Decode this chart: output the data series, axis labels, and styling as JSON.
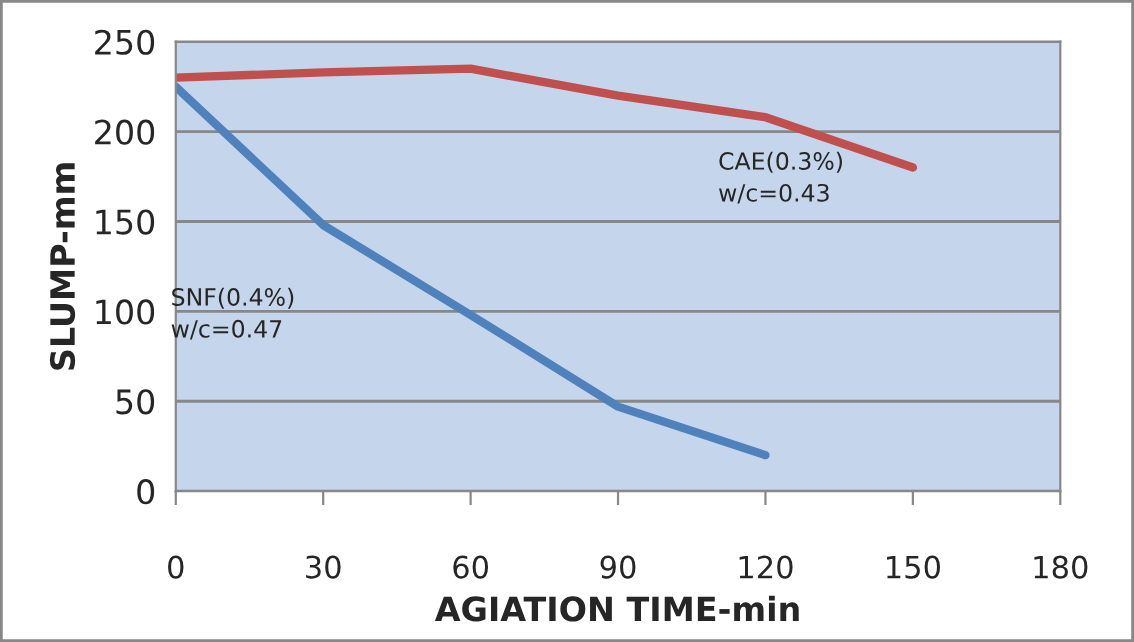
{
  "chart_data": {
    "type": "line",
    "xlabel": "AGIATION TIME-min",
    "ylabel": "SLUMP-mm",
    "series": [
      {
        "name": "CAE(0.3%)\nw/c=0.43",
        "color": "#c0504d",
        "x": [
          0,
          30,
          60,
          90,
          120,
          150
        ],
        "values": [
          230,
          233,
          235,
          220,
          208,
          180
        ]
      },
      {
        "name": "SNF(0.4%)\nw/c=0.47",
        "color": "#4f81bd",
        "x": [
          0,
          30,
          60,
          90,
          120
        ],
        "values": [
          225,
          148,
          98,
          47,
          20
        ]
      }
    ],
    "xlim": [
      0,
      180
    ],
    "xticks": [
      0,
      30,
      60,
      90,
      120,
      150,
      180
    ],
    "ylim": [
      0,
      250
    ],
    "yticks": [
      0,
      50,
      100,
      150,
      200,
      250
    ],
    "grid": "y",
    "marker": "none",
    "line_style": "solid",
    "legend": false
  }
}
